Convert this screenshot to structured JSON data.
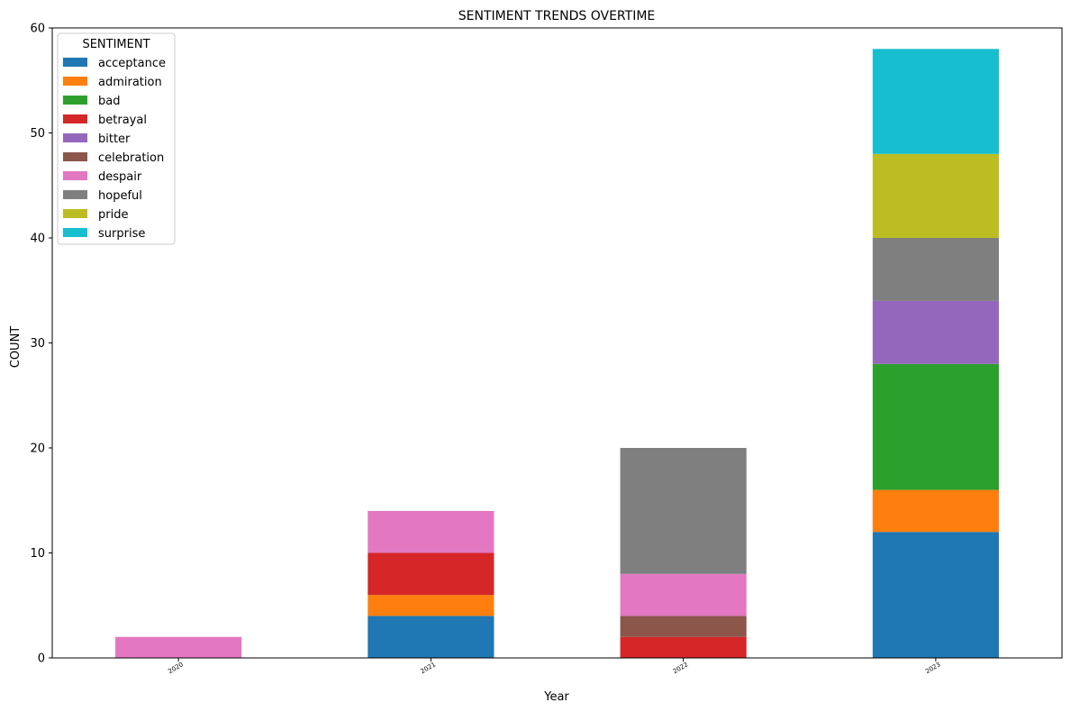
{
  "chart_data": {
    "type": "bar",
    "stacked": true,
    "title": "SENTIMENT TRENDS OVERTIME",
    "xlabel": "Year",
    "ylabel": "COUNT",
    "ylim": [
      0,
      60
    ],
    "yticks": [
      0,
      10,
      20,
      30,
      40,
      50,
      60
    ],
    "categories": [
      "2020",
      "2021",
      "2022",
      "2023"
    ],
    "legend_title": "SENTIMENT",
    "legend_position": "top-left",
    "grid": false,
    "series": [
      {
        "name": "acceptance",
        "color": "#1f77b4",
        "values": [
          0,
          4,
          0,
          12
        ]
      },
      {
        "name": "admiration",
        "color": "#ff7f0e",
        "values": [
          0,
          2,
          0,
          4
        ]
      },
      {
        "name": "bad",
        "color": "#2ca02c",
        "values": [
          0,
          0,
          0,
          12
        ]
      },
      {
        "name": "betrayal",
        "color": "#d62728",
        "values": [
          0,
          4,
          2,
          0
        ]
      },
      {
        "name": "bitter",
        "color": "#9467bd",
        "values": [
          0,
          0,
          0,
          6
        ]
      },
      {
        "name": "celebration",
        "color": "#8c564b",
        "values": [
          0,
          0,
          2,
          0
        ]
      },
      {
        "name": "despair",
        "color": "#e377c2",
        "values": [
          2,
          4,
          4,
          0
        ]
      },
      {
        "name": "hopeful",
        "color": "#7f7f7f",
        "values": [
          0,
          0,
          12,
          6
        ]
      },
      {
        "name": "pride",
        "color": "#bcbd22",
        "values": [
          0,
          0,
          0,
          8
        ]
      },
      {
        "name": "surprise",
        "color": "#17becf",
        "values": [
          0,
          0,
          0,
          10
        ]
      }
    ]
  }
}
